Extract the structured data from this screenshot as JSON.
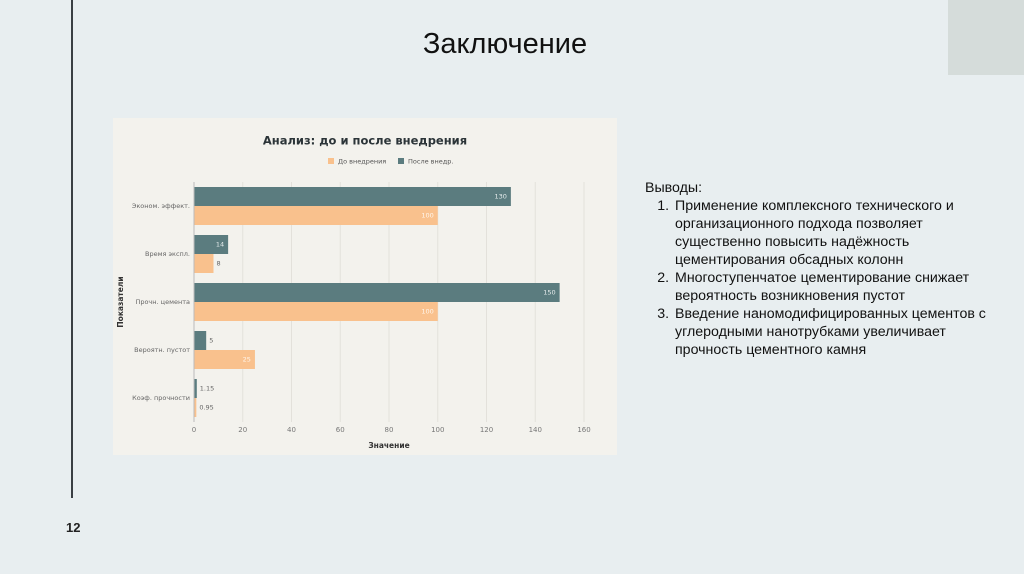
{
  "slide": {
    "title": "Заключение",
    "page_number": 12,
    "conclusions_heading": "Выводы:",
    "conclusions": [
      "Применение комплексного технического и организационного подхода позволяет существенно повысить надёжность цементирования обсадных колонн",
      "Многоступенчатое цементирование снижает вероятность возникновения пустот",
      "Введение наномодифицированных цементов с углеродными нанотрубками увеличивает прочность цементного камня"
    ]
  },
  "chart_data": {
    "type": "bar",
    "orientation": "horizontal",
    "title": "Анализ: до и после внедрения",
    "categories": [
      "Эконом. эффект.",
      "Время экспл.",
      "Прочн. цемента",
      "Вероятн. пустот",
      "Коэф. прочности"
    ],
    "series": [
      {
        "name": "До внедрения",
        "color": "#f9c18d",
        "values": [
          100,
          8,
          100,
          25,
          0.95
        ]
      },
      {
        "name": "После внедр.",
        "color": "#5b7c7f",
        "values": [
          130,
          14,
          150,
          5,
          1.15
        ]
      }
    ],
    "xlim": [
      0,
      160
    ],
    "xticks": [
      0,
      20,
      40,
      60,
      80,
      100,
      120,
      140,
      160
    ],
    "xlabel": "Значение",
    "ylabel": "Показатели"
  }
}
